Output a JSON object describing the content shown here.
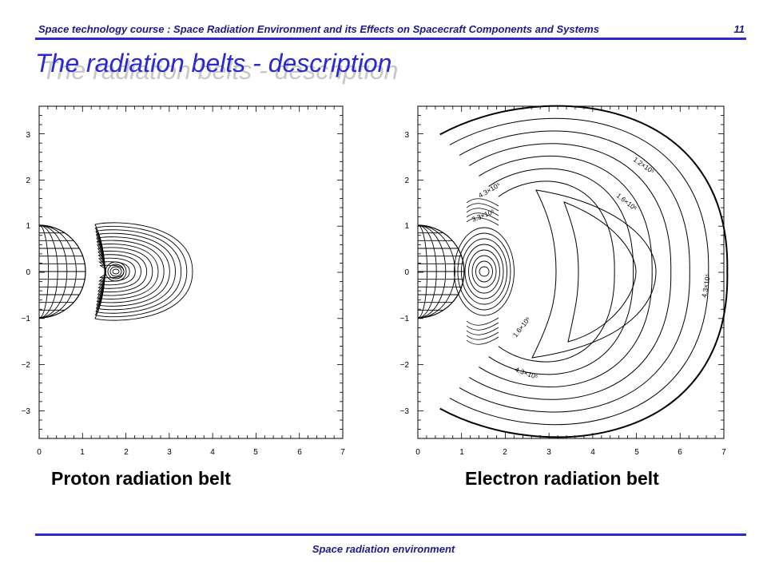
{
  "header": {
    "course_title": "Space technology course : Space Radiation Environment and its Effects on Spacecraft Components and Systems",
    "page_number": "11"
  },
  "slide": {
    "title": "The radiation belts - description"
  },
  "panels": [
    {
      "caption": "Proton radiation belt",
      "x_ticks": [
        "0",
        "1",
        "2",
        "3",
        "4",
        "5",
        "6",
        "7"
      ],
      "y_ticks": [
        "3",
        "2",
        "1",
        "0",
        "−1",
        "−2",
        "−3"
      ]
    },
    {
      "caption": "Electron radiation belt",
      "x_ticks": [
        "0",
        "1",
        "2",
        "3",
        "4",
        "5",
        "6",
        "7"
      ],
      "y_ticks": [
        "3",
        "2",
        "1",
        "0",
        "−1",
        "−2",
        "−3"
      ],
      "contour_labels": [
        "1.6×10⁶",
        "1.6×10⁶",
        "4.3×10⁵",
        "4.3×10⁵",
        "4.3×10⁵",
        "1.2×10⁵",
        "3.3×10⁵"
      ]
    }
  ],
  "footer": {
    "text": "Space radiation environment"
  }
}
